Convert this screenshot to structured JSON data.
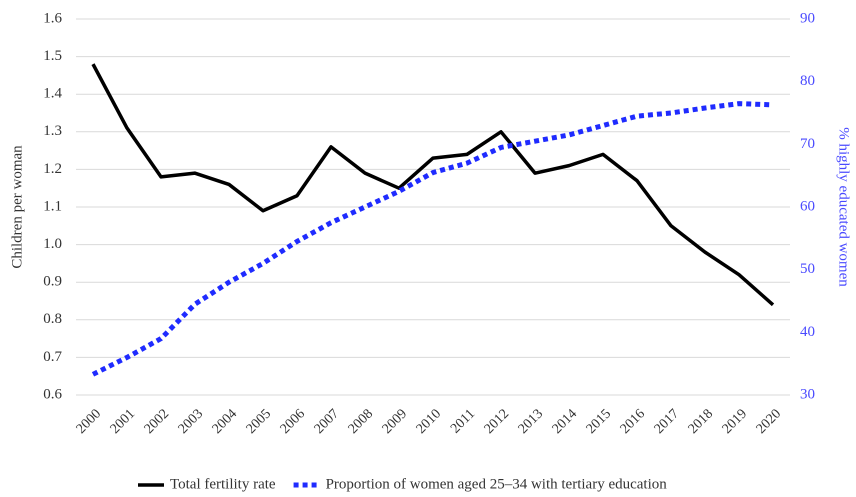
{
  "chart_data": {
    "type": "line",
    "categories": [
      "2000",
      "2001",
      "2002",
      "2003",
      "2004",
      "2005",
      "2006",
      "2007",
      "2008",
      "2009",
      "2010",
      "2011",
      "2012",
      "2013",
      "2014",
      "2015",
      "2016",
      "2017",
      "2018",
      "2019",
      "2020"
    ],
    "ylabel": "Children per woman",
    "y2label": "% highly educated women",
    "ylim": [
      0.6,
      1.6
    ],
    "yticks": [
      0.6,
      0.7,
      0.8,
      0.9,
      {
        "value": 1,
        "label": "1.0"
      },
      1.1,
      1.2,
      1.3,
      1.4,
      1.5,
      1.6
    ],
    "y2lim": [
      30,
      90
    ],
    "y2ticks": [
      30,
      40,
      50,
      60,
      70,
      80,
      90
    ],
    "grid": true,
    "legend": "bottom",
    "series": [
      {
        "name": "Total fertility rate",
        "color": "#000000",
        "style": "solid",
        "values": [
          1.48,
          1.31,
          1.18,
          1.19,
          1.16,
          1.09,
          1.13,
          1.26,
          1.19,
          1.15,
          1.23,
          1.24,
          1.3,
          1.19,
          1.21,
          1.24,
          1.17,
          1.05,
          0.98,
          0.92,
          0.84
        ]
      },
      {
        "name": "Proportion of women aged 25–34 with tertiary education",
        "color": "#1f2bff",
        "style": "dotted",
        "axis": "y2",
        "values": [
          33.3,
          36,
          39,
          44.5,
          48,
          51,
          54.5,
          57.5,
          60,
          62.5,
          65.5,
          67,
          69.5,
          70.5,
          71.5,
          73,
          74.5,
          75,
          75.8,
          76.5,
          76.3
        ]
      }
    ]
  }
}
